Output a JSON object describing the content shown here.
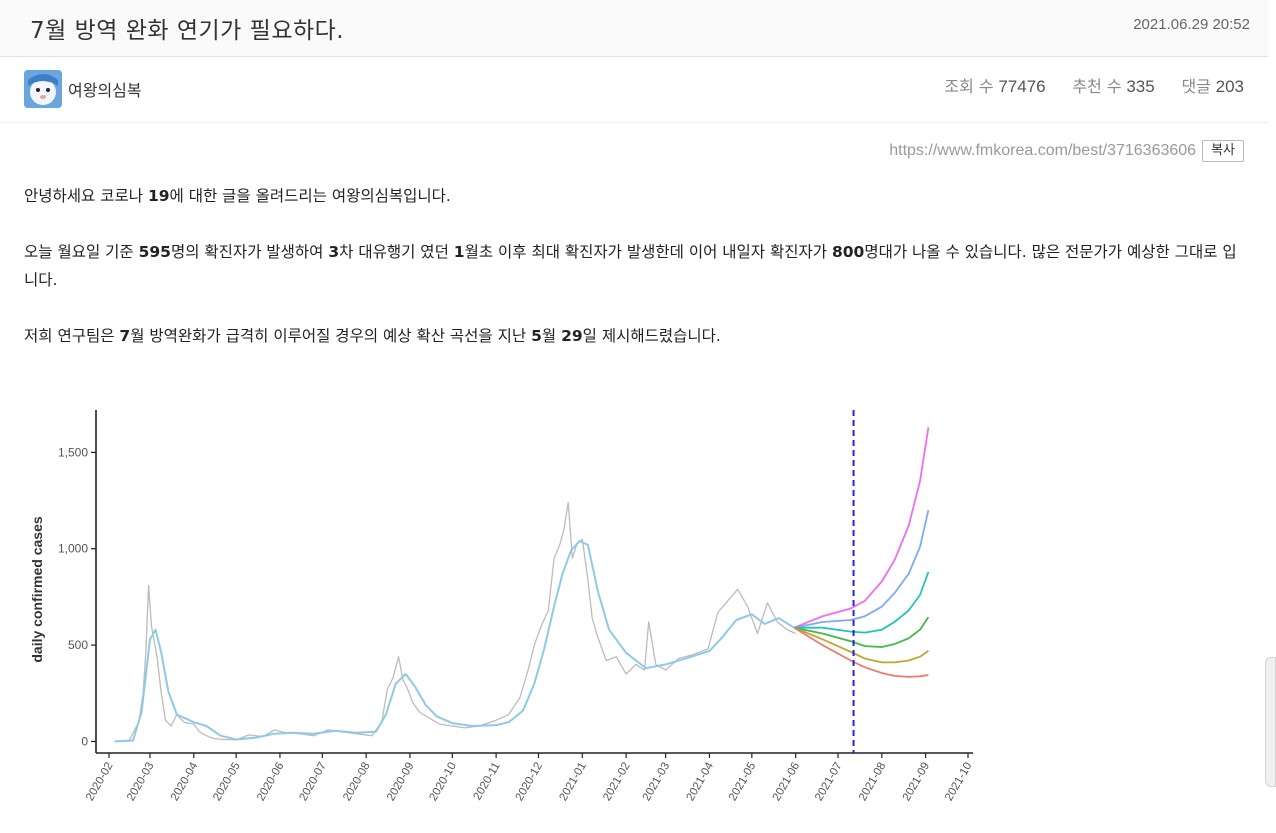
{
  "post": {
    "title": "7월 방역 완화 연기가 필요하다.",
    "date": "2021.06.29 20:52",
    "author": "여왕의심복",
    "views_label": "조회 수",
    "views": "77476",
    "likes_label": "추천 수",
    "likes": "335",
    "comments_label": "댓글",
    "comments": "203",
    "url": "https://www.fmkorea.com/best/3716363606",
    "copy_label": "복사"
  },
  "body": {
    "p1": [
      "안녕하세요 코로나 ",
      "19",
      "에 대한 글을 올려드리는 여왕의심복입니다."
    ],
    "p2": [
      "오늘 월요일 기준 ",
      "595",
      "명의 확진자가 발생하여 ",
      "3",
      "차 대유행기 였던 ",
      "1",
      "월초 이후 최대 확진자가 발생한데 이어 내일자 확진자가 ",
      "800",
      "명대가 나올 수 있습니다. 많은 전문가가 예상한 그대로 입니다."
    ],
    "p3": [
      "저희 연구팀은 ",
      "7",
      "월 방역완화가 급격히 이루어질 경우의 예상 확산 곡선을 지난 ",
      "5",
      "월 ",
      "29",
      "일 제시해드렸습니다."
    ]
  },
  "chart_data": {
    "type": "line",
    "ylabel": "daily confirmed cases",
    "xlabel": "",
    "ylim": [
      -60,
      1720
    ],
    "yticks": [
      0,
      500,
      1000,
      1500
    ],
    "ytick_labels": [
      "0",
      "500",
      "1,000",
      "1,500"
    ],
    "xticks": [
      "2020-02",
      "2020-03",
      "2020-04",
      "2020-05",
      "2020-06",
      "2020-07",
      "2020-08",
      "2020-09",
      "2020-10",
      "2020-11",
      "2020-12",
      "2021-01",
      "2021-02",
      "2021-03",
      "2021-04",
      "2021-05",
      "2021-06",
      "2021-07",
      "2021-08",
      "2021-09",
      "2021-10"
    ],
    "vline_date": "2021-07-12",
    "colors": {
      "raw": "#bcbcbc",
      "smooth": "#8ecae6",
      "vline": "#2222ee",
      "scenarios": [
        "#f06cf0",
        "#7fa8f5",
        "#22c4b8",
        "#41b84c",
        "#bfa532",
        "#f07a6a"
      ]
    },
    "raw": {
      "dates": [
        "2020-02-05",
        "2020-02-15",
        "2020-02-22",
        "2020-02-25",
        "2020-02-27",
        "2020-02-29",
        "2020-03-02",
        "2020-03-04",
        "2020-03-06",
        "2020-03-09",
        "2020-03-12",
        "2020-03-16",
        "2020-03-20",
        "2020-03-25",
        "2020-04-01",
        "2020-04-05",
        "2020-04-10",
        "2020-04-15",
        "2020-04-22",
        "2020-05-01",
        "2020-05-10",
        "2020-05-20",
        "2020-05-28",
        "2020-06-05",
        "2020-06-15",
        "2020-06-25",
        "2020-07-05",
        "2020-07-15",
        "2020-07-25",
        "2020-08-05",
        "2020-08-12",
        "2020-08-16",
        "2020-08-20",
        "2020-08-24",
        "2020-08-27",
        "2020-08-30",
        "2020-09-03",
        "2020-09-08",
        "2020-09-15",
        "2020-09-22",
        "2020-10-01",
        "2020-10-10",
        "2020-10-20",
        "2020-11-01",
        "2020-11-10",
        "2020-11-18",
        "2020-11-24",
        "2020-11-28",
        "2020-12-03",
        "2020-12-08",
        "2020-12-12",
        "2020-12-16",
        "2020-12-19",
        "2020-12-22",
        "2020-12-25",
        "2020-12-28",
        "2021-01-01",
        "2021-01-05",
        "2021-01-08",
        "2021-01-12",
        "2021-01-18",
        "2021-01-25",
        "2021-02-01",
        "2021-02-08",
        "2021-02-14",
        "2021-02-17",
        "2021-02-22",
        "2021-03-01",
        "2021-03-10",
        "2021-03-20",
        "2021-03-31",
        "2021-04-07",
        "2021-04-14",
        "2021-04-21",
        "2021-04-28",
        "2021-05-05",
        "2021-05-12",
        "2021-05-19",
        "2021-05-26",
        "2021-06-01"
      ],
      "values": [
        0,
        2,
        100,
        240,
        450,
        810,
        600,
        520,
        440,
        250,
        110,
        80,
        140,
        100,
        90,
        50,
        30,
        15,
        10,
        8,
        34,
        25,
        60,
        45,
        40,
        30,
        60,
        50,
        40,
        30,
        100,
        270,
        330,
        440,
        320,
        280,
        200,
        150,
        120,
        90,
        80,
        70,
        80,
        110,
        140,
        230,
        380,
        500,
        600,
        680,
        950,
        1020,
        1100,
        1240,
        950,
        1020,
        1050,
        840,
        640,
        540,
        420,
        440,
        350,
        400,
        370,
        620,
        400,
        370,
        430,
        450,
        480,
        670,
        730,
        790,
        700,
        560,
        720,
        620,
        580,
        560
      ]
    },
    "smooth": {
      "dates": [
        "2020-02-05",
        "2020-02-18",
        "2020-02-24",
        "2020-02-28",
        "2020-03-01",
        "2020-03-05",
        "2020-03-09",
        "2020-03-14",
        "2020-03-20",
        "2020-04-01",
        "2020-04-10",
        "2020-04-20",
        "2020-05-01",
        "2020-05-15",
        "2020-05-28",
        "2020-06-10",
        "2020-06-25",
        "2020-07-10",
        "2020-07-25",
        "2020-08-08",
        "2020-08-15",
        "2020-08-22",
        "2020-08-29",
        "2020-09-05",
        "2020-09-12",
        "2020-09-20",
        "2020-10-01",
        "2020-10-15",
        "2020-11-01",
        "2020-11-10",
        "2020-11-20",
        "2020-11-28",
        "2020-12-05",
        "2020-12-12",
        "2020-12-18",
        "2020-12-24",
        "2020-12-30",
        "2021-01-05",
        "2021-01-12",
        "2021-01-20",
        "2021-02-01",
        "2021-02-15",
        "2021-03-01",
        "2021-03-15",
        "2021-04-01",
        "2021-04-10",
        "2021-04-20",
        "2021-05-01",
        "2021-05-10",
        "2021-05-20",
        "2021-05-31"
      ],
      "values": [
        0,
        5,
        150,
        400,
        530,
        580,
        460,
        260,
        140,
        100,
        80,
        30,
        10,
        20,
        40,
        45,
        40,
        55,
        45,
        50,
        140,
        300,
        350,
        280,
        190,
        130,
        95,
        80,
        85,
        100,
        160,
        300,
        480,
        700,
        870,
        990,
        1040,
        1020,
        780,
        580,
        460,
        380,
        400,
        430,
        470,
        540,
        630,
        660,
        610,
        640,
        590
      ]
    },
    "scenarios": [
      {
        "dates": [
          "2021-05-31",
          "2021-06-20",
          "2021-07-10",
          "2021-07-20",
          "2021-08-01",
          "2021-08-10",
          "2021-08-20",
          "2021-08-28",
          "2021-09-03"
        ],
        "values": [
          590,
          650,
          690,
          730,
          830,
          940,
          1120,
          1350,
          1630
        ]
      },
      {
        "dates": [
          "2021-05-31",
          "2021-06-20",
          "2021-07-10",
          "2021-07-20",
          "2021-08-01",
          "2021-08-10",
          "2021-08-20",
          "2021-08-28",
          "2021-09-03"
        ],
        "values": [
          590,
          620,
          630,
          650,
          700,
          770,
          870,
          1010,
          1200
        ]
      },
      {
        "dates": [
          "2021-05-31",
          "2021-06-20",
          "2021-07-10",
          "2021-07-20",
          "2021-08-01",
          "2021-08-10",
          "2021-08-20",
          "2021-08-28",
          "2021-09-03"
        ],
        "values": [
          590,
          590,
          570,
          565,
          580,
          620,
          680,
          760,
          880
        ]
      },
      {
        "dates": [
          "2021-05-31",
          "2021-06-20",
          "2021-07-10",
          "2021-07-20",
          "2021-08-01",
          "2021-08-10",
          "2021-08-20",
          "2021-08-28",
          "2021-09-03"
        ],
        "values": [
          590,
          560,
          520,
          495,
          490,
          505,
          535,
          580,
          645
        ]
      },
      {
        "dates": [
          "2021-05-31",
          "2021-06-20",
          "2021-07-10",
          "2021-07-20",
          "2021-08-01",
          "2021-08-10",
          "2021-08-20",
          "2021-08-28",
          "2021-09-03"
        ],
        "values": [
          590,
          530,
          465,
          430,
          410,
          410,
          420,
          440,
          470
        ]
      },
      {
        "dates": [
          "2021-05-31",
          "2021-06-20",
          "2021-07-10",
          "2021-07-20",
          "2021-08-01",
          "2021-08-10",
          "2021-08-20",
          "2021-08-28",
          "2021-09-03"
        ],
        "values": [
          590,
          500,
          420,
          385,
          355,
          340,
          335,
          338,
          345
        ]
      }
    ]
  }
}
